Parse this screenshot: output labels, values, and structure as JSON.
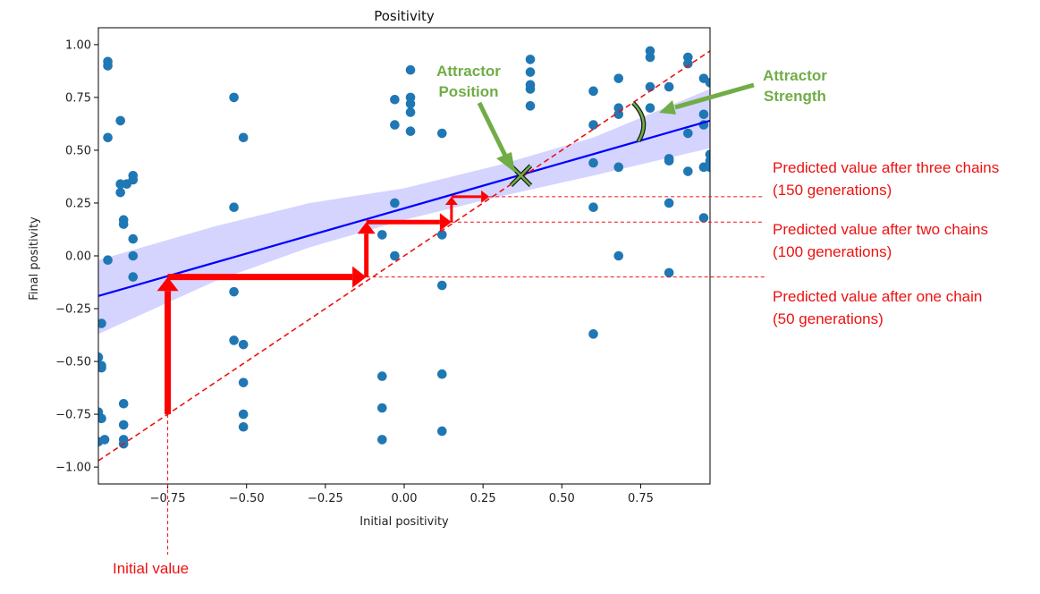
{
  "chart_data": {
    "type": "scatter",
    "title": "Positivity",
    "xlabel": "Initial positivity",
    "ylabel": "Final positivity",
    "xlim": [
      -0.97,
      0.97
    ],
    "ylim": [
      -1.08,
      1.08
    ],
    "xticks": [
      -0.75,
      -0.5,
      -0.25,
      0.0,
      0.25,
      0.5,
      0.75
    ],
    "yticks": [
      -1.0,
      -0.75,
      -0.5,
      -0.25,
      0.0,
      0.25,
      0.5,
      0.75,
      1.0
    ],
    "xtick_labels": [
      "−0.75",
      "−0.50",
      "−0.25",
      "0.00",
      "0.25",
      "0.50",
      "0.75"
    ],
    "ytick_labels": [
      "−1.00",
      "−0.75",
      "−0.50",
      "−0.25",
      "0.00",
      "0.25",
      "0.50",
      "0.75",
      "1.00"
    ],
    "points": [
      [
        -0.94,
        0.92
      ],
      [
        -0.94,
        0.9
      ],
      [
        -0.94,
        0.56
      ],
      [
        -0.9,
        0.64
      ],
      [
        -0.9,
        0.34
      ],
      [
        -0.88,
        0.34
      ],
      [
        -0.9,
        0.3
      ],
      [
        -0.89,
        0.17
      ],
      [
        -0.89,
        0.15
      ],
      [
        -0.86,
        0.38
      ],
      [
        -0.86,
        0.36
      ],
      [
        -0.86,
        0.08
      ],
      [
        -0.86,
        0.0
      ],
      [
        -0.86,
        -0.1
      ],
      [
        -0.94,
        -0.02
      ],
      [
        -0.96,
        -0.32
      ],
      [
        -0.97,
        -0.48
      ],
      [
        -0.96,
        -0.52
      ],
      [
        -0.96,
        -0.53
      ],
      [
        -0.97,
        -0.74
      ],
      [
        -0.96,
        -0.77
      ],
      [
        -0.95,
        -0.87
      ],
      [
        -0.97,
        -0.88
      ],
      [
        -0.89,
        -0.7
      ],
      [
        -0.89,
        -0.8
      ],
      [
        -0.89,
        -0.87
      ],
      [
        -0.89,
        -0.89
      ],
      [
        -0.54,
        0.75
      ],
      [
        -0.54,
        0.23
      ],
      [
        -0.54,
        -0.17
      ],
      [
        -0.54,
        -0.4
      ],
      [
        -0.51,
        0.56
      ],
      [
        -0.51,
        -0.42
      ],
      [
        -0.51,
        -0.6
      ],
      [
        -0.51,
        -0.75
      ],
      [
        -0.51,
        -0.81
      ],
      [
        -0.03,
        0.74
      ],
      [
        -0.03,
        0.62
      ],
      [
        -0.03,
        0.25
      ],
      [
        -0.03,
        0.0
      ],
      [
        -0.07,
        0.1
      ],
      [
        -0.07,
        -0.57
      ],
      [
        -0.07,
        -0.72
      ],
      [
        -0.07,
        -0.87
      ],
      [
        0.02,
        0.88
      ],
      [
        0.02,
        0.75
      ],
      [
        0.02,
        0.72
      ],
      [
        0.02,
        0.68
      ],
      [
        0.02,
        0.59
      ],
      [
        0.12,
        0.58
      ],
      [
        0.12,
        0.1
      ],
      [
        0.12,
        -0.14
      ],
      [
        0.12,
        -0.56
      ],
      [
        0.12,
        -0.83
      ],
      [
        0.4,
        0.93
      ],
      [
        0.4,
        0.87
      ],
      [
        0.4,
        0.81
      ],
      [
        0.4,
        0.79
      ],
      [
        0.4,
        0.71
      ],
      [
        0.6,
        0.78
      ],
      [
        0.6,
        0.62
      ],
      [
        0.6,
        0.44
      ],
      [
        0.6,
        0.23
      ],
      [
        0.6,
        -0.37
      ],
      [
        0.68,
        0.84
      ],
      [
        0.68,
        0.7
      ],
      [
        0.68,
        0.67
      ],
      [
        0.68,
        0.42
      ],
      [
        0.68,
        0.0
      ],
      [
        0.78,
        0.97
      ],
      [
        0.78,
        0.94
      ],
      [
        0.78,
        0.8
      ],
      [
        0.78,
        0.7
      ],
      [
        0.84,
        0.8
      ],
      [
        0.84,
        0.46
      ],
      [
        0.84,
        0.45
      ],
      [
        0.84,
        0.25
      ],
      [
        0.84,
        -0.08
      ],
      [
        0.9,
        0.94
      ],
      [
        0.9,
        0.91
      ],
      [
        0.9,
        0.58
      ],
      [
        0.9,
        0.4
      ],
      [
        0.95,
        0.84
      ],
      [
        0.95,
        0.67
      ],
      [
        0.95,
        0.62
      ],
      [
        0.95,
        0.42
      ],
      [
        0.95,
        0.18
      ],
      [
        0.97,
        0.82
      ],
      [
        0.97,
        0.48
      ],
      [
        0.97,
        0.45
      ],
      [
        0.97,
        0.42
      ]
    ],
    "regression_line": {
      "x": [
        -0.97,
        0.97
      ],
      "y": [
        -0.19,
        0.64
      ]
    },
    "confidence_band": {
      "x": [
        -0.97,
        -0.6,
        -0.3,
        0.0,
        0.3,
        0.6,
        0.97
      ],
      "lower": [
        -0.37,
        -0.12,
        0.04,
        0.17,
        0.28,
        0.38,
        0.51
      ],
      "upper": [
        -0.02,
        0.14,
        0.25,
        0.32,
        0.43,
        0.56,
        0.79
      ]
    },
    "identity_line": {
      "x": [
        -0.97,
        0.97
      ],
      "y": [
        -0.97,
        0.97
      ]
    },
    "cobweb_path": [
      [
        -0.75,
        -0.75
      ],
      [
        -0.75,
        -0.1
      ],
      [
        -0.12,
        -0.1
      ],
      [
        -0.12,
        0.16
      ],
      [
        0.15,
        0.16
      ],
      [
        0.15,
        0.28
      ],
      [
        0.27,
        0.28
      ]
    ],
    "attractor": {
      "x": 0.37,
      "y": 0.38
    },
    "annotations": {
      "attractor_position": [
        "Attractor",
        "Position"
      ],
      "attractor_strength": [
        "Attractor",
        "Strength"
      ],
      "after_three": [
        "Predicted value after three chains",
        "(150 generations)"
      ],
      "after_two": [
        "Predicted value after two chains",
        "(100 generations)"
      ],
      "after_one": [
        "Predicted value after one chain",
        "(50 generations)"
      ],
      "initial_value": "Initial value"
    },
    "colors": {
      "points": "#1f77b4",
      "regression": "#0000ff",
      "band": "#ccccff",
      "identity": "#ee1111",
      "cobweb": "#ff0000",
      "annotation_red": "#ee1111",
      "annotation_green": "#70ad47"
    }
  }
}
